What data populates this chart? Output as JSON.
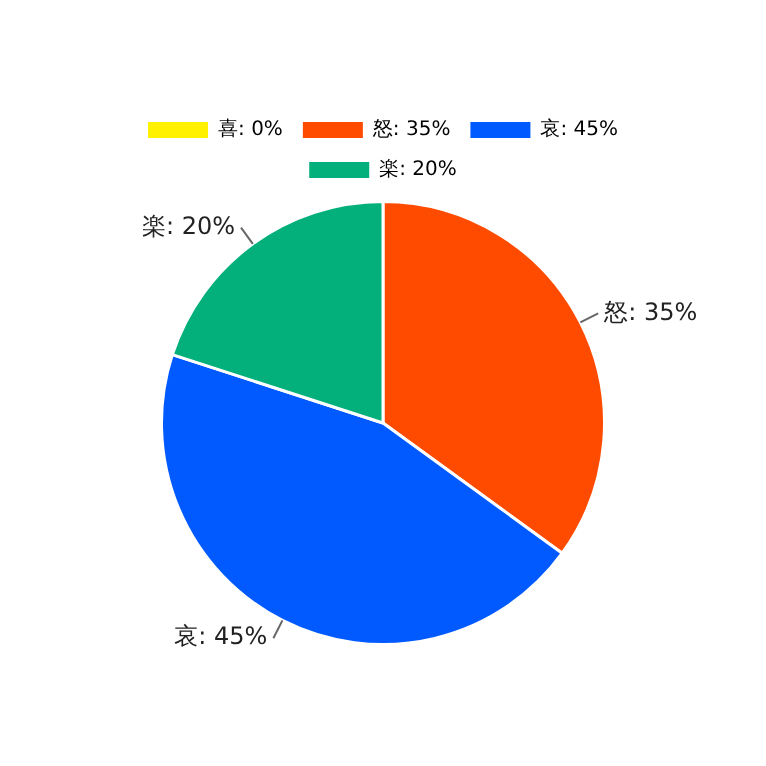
{
  "chart_data": {
    "type": "pie",
    "categories": [
      "喜",
      "怒",
      "哀",
      "楽"
    ],
    "values": [
      0,
      35,
      45,
      20
    ],
    "colors": [
      "#fff100",
      "#ff4b00",
      "#005aff",
      "#03af7a"
    ],
    "value_labels": [
      "0%",
      "35%",
      "45%",
      "20%"
    ],
    "legend": "top"
  }
}
